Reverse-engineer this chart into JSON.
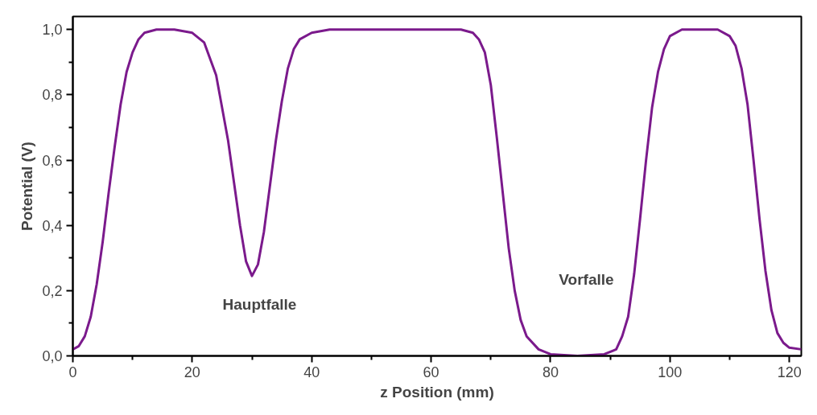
{
  "chart_data": {
    "type": "line",
    "xlabel": "z Position (mm)",
    "ylabel": "Potential (V)",
    "x": [
      0,
      1,
      2,
      3,
      4,
      5,
      6,
      7,
      8,
      9,
      10,
      11,
      12,
      14,
      17,
      20,
      22,
      24,
      26,
      27,
      28,
      29,
      30,
      31,
      32,
      33,
      34,
      35,
      36,
      37,
      38,
      40,
      43,
      65,
      67,
      68,
      69,
      70,
      71,
      72,
      73,
      74,
      75,
      76,
      78,
      80,
      84.5,
      89,
      91,
      92,
      93,
      94,
      95,
      96,
      97,
      98,
      99,
      100,
      102,
      108,
      110,
      111,
      112,
      113,
      114,
      115,
      116,
      117,
      118,
      119,
      120,
      122
    ],
    "series": [
      {
        "color": "#7b1a8c",
        "values": [
          0.02,
          0.03,
          0.06,
          0.12,
          0.22,
          0.35,
          0.5,
          0.64,
          0.77,
          0.87,
          0.93,
          0.97,
          0.99,
          1.0,
          1.0,
          0.99,
          0.96,
          0.86,
          0.66,
          0.53,
          0.4,
          0.29,
          0.245,
          0.28,
          0.38,
          0.52,
          0.66,
          0.78,
          0.88,
          0.94,
          0.97,
          0.99,
          1.0,
          1.0,
          0.99,
          0.97,
          0.93,
          0.83,
          0.67,
          0.5,
          0.33,
          0.2,
          0.11,
          0.06,
          0.02,
          0.005,
          0.0,
          0.005,
          0.02,
          0.06,
          0.12,
          0.25,
          0.42,
          0.6,
          0.76,
          0.87,
          0.94,
          0.98,
          1.0,
          1.0,
          0.98,
          0.95,
          0.88,
          0.77,
          0.6,
          0.42,
          0.26,
          0.14,
          0.07,
          0.04,
          0.025,
          0.02
        ]
      }
    ],
    "xlim": [
      0,
      122
    ],
    "ylim": [
      0,
      1.04
    ],
    "xticks": [
      0,
      20,
      40,
      60,
      80,
      100,
      120
    ],
    "yticks": [
      {
        "value": 0,
        "label": "0,0"
      },
      {
        "value": 0.2,
        "label": "0,2"
      },
      {
        "value": 0.4,
        "label": "0,4"
      },
      {
        "value": 0.6,
        "label": "0,6"
      },
      {
        "value": 0.8,
        "label": "0,8"
      },
      {
        "value": 1.0,
        "label": "1,0"
      }
    ],
    "annotations": [
      "Hauptfalle",
      "Vorfalle"
    ],
    "grid": false,
    "marker": "none",
    "line_style": "solid"
  }
}
